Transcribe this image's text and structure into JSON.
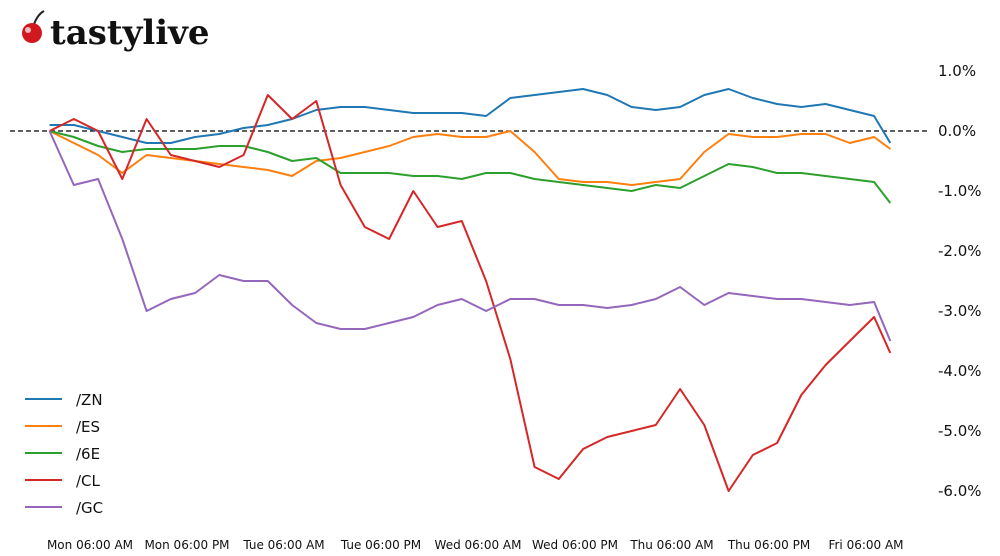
{
  "logo": {
    "text": "tastylive",
    "icon": "cherry-icon"
  },
  "chart_data": {
    "type": "line",
    "title": "",
    "xlabel": "",
    "ylabel": "",
    "yunit": "%",
    "ylim": [
      -6.5,
      1.5
    ],
    "yticks": [
      1.0,
      0.0,
      -1.0,
      -2.0,
      -3.0,
      -4.0,
      -5.0,
      -6.0
    ],
    "ytick_labels": [
      "1.0%",
      "0.0%",
      "-1.0%",
      "-2.0%",
      "-3.0%",
      "-4.0%",
      "-5.0%",
      "-6.0%"
    ],
    "xtick_labels": [
      "Mon 06:00 AM",
      "Mon 06:00 PM",
      "Tue 06:00 AM",
      "Tue 06:00 PM",
      "Wed 06:00 AM",
      "Wed 06:00 PM",
      "Thu 06:00 AM",
      "Thu 06:00 PM",
      "Fri 06:00 AM"
    ],
    "reference_line": {
      "value": 0.0,
      "style": "dashed",
      "color": "#000000"
    },
    "grid": false,
    "legend_placement": "bottom-left",
    "x": [
      "Mon 01:00 AM",
      "Mon 04:00 AM",
      "Mon 07:00 AM",
      "Mon 10:00 AM",
      "Mon 01:00 PM",
      "Mon 04:00 PM",
      "Mon 07:00 PM",
      "Mon 10:00 PM",
      "Tue 01:00 AM",
      "Tue 04:00 AM",
      "Tue 07:00 AM",
      "Tue 10:00 AM",
      "Tue 01:00 PM",
      "Tue 04:00 PM",
      "Tue 07:00 PM",
      "Tue 10:00 PM",
      "Wed 01:00 AM",
      "Wed 04:00 AM",
      "Wed 07:00 AM",
      "Wed 10:00 AM",
      "Wed 01:00 PM",
      "Wed 04:00 PM",
      "Wed 07:00 PM",
      "Wed 10:00 PM",
      "Thu 01:00 AM",
      "Thu 04:00 AM",
      "Thu 07:00 AM",
      "Thu 10:00 AM",
      "Thu 01:00 PM",
      "Thu 04:00 PM",
      "Thu 07:00 PM",
      "Thu 10:00 PM",
      "Fri 01:00 AM",
      "Fri 04:00 AM",
      "Fri 07:00 AM",
      "Fri 09:00 AM"
    ],
    "series": [
      {
        "name": "/ZN",
        "color": "#1f77b4",
        "values": [
          0.1,
          0.1,
          0,
          -0.1,
          -0.2,
          -0.2,
          -0.1,
          -0.05,
          0.05,
          0.1,
          0.2,
          0.35,
          0.4,
          0.4,
          0.35,
          0.3,
          0.3,
          0.3,
          0.25,
          0.55,
          0.6,
          0.65,
          0.7,
          0.6,
          0.4,
          0.35,
          0.4,
          0.6,
          0.7,
          0.55,
          0.45,
          0.4,
          0.45,
          0.35,
          0.25,
          -0.2
        ]
      },
      {
        "name": "/ES",
        "color": "#ff7f0e",
        "values": [
          0,
          -0.2,
          -0.4,
          -0.7,
          -0.4,
          -0.45,
          -0.5,
          -0.55,
          -0.6,
          -0.65,
          -0.75,
          -0.5,
          -0.45,
          -0.35,
          -0.25,
          -0.1,
          -0.05,
          -0.1,
          -0.1,
          0.0,
          -0.35,
          -0.8,
          -0.85,
          -0.85,
          -0.9,
          -0.85,
          -0.8,
          -0.35,
          -0.05,
          -0.1,
          -0.1,
          -0.05,
          -0.05,
          -0.2,
          -0.1,
          -0.3
        ]
      },
      {
        "name": "/6E",
        "color": "#2ca02c",
        "values": [
          0,
          -0.1,
          -0.25,
          -0.35,
          -0.3,
          -0.3,
          -0.3,
          -0.25,
          -0.25,
          -0.35,
          -0.5,
          -0.45,
          -0.7,
          -0.7,
          -0.7,
          -0.75,
          -0.75,
          -0.8,
          -0.7,
          -0.7,
          -0.8,
          -0.85,
          -0.9,
          -0.95,
          -1.0,
          -0.9,
          -0.95,
          -0.75,
          -0.55,
          -0.6,
          -0.7,
          -0.7,
          -0.75,
          -0.8,
          -0.85,
          -1.2
        ]
      },
      {
        "name": "/CL",
        "color": "#d62728",
        "values": [
          0,
          0.2,
          0,
          -0.8,
          0.2,
          -0.4,
          -0.5,
          -0.6,
          -0.4,
          0.6,
          0.2,
          0.5,
          -0.9,
          -1.6,
          -1.8,
          -1.0,
          -1.6,
          -1.5,
          -2.5,
          -3.8,
          -5.6,
          -5.8,
          -5.3,
          -5.1,
          -5.0,
          -4.9,
          -4.3,
          -4.9,
          -6.0,
          -5.4,
          -5.2,
          -4.4,
          -3.9,
          -3.5,
          -3.1,
          -3.7
        ]
      },
      {
        "name": "/GC",
        "color": "#9467bd",
        "values": [
          0,
          -0.9,
          -0.8,
          -1.8,
          -3.0,
          -2.8,
          -2.7,
          -2.4,
          -2.5,
          -2.5,
          -2.9,
          -3.2,
          -3.3,
          -3.3,
          -3.2,
          -3.1,
          -2.9,
          -2.8,
          -3.0,
          -2.8,
          -2.8,
          -2.9,
          -2.9,
          -2.95,
          -2.9,
          -2.8,
          -2.6,
          -2.9,
          -2.7,
          -2.75,
          -2.8,
          -2.8,
          -2.85,
          -2.9,
          -2.85,
          -3.5
        ]
      }
    ]
  }
}
